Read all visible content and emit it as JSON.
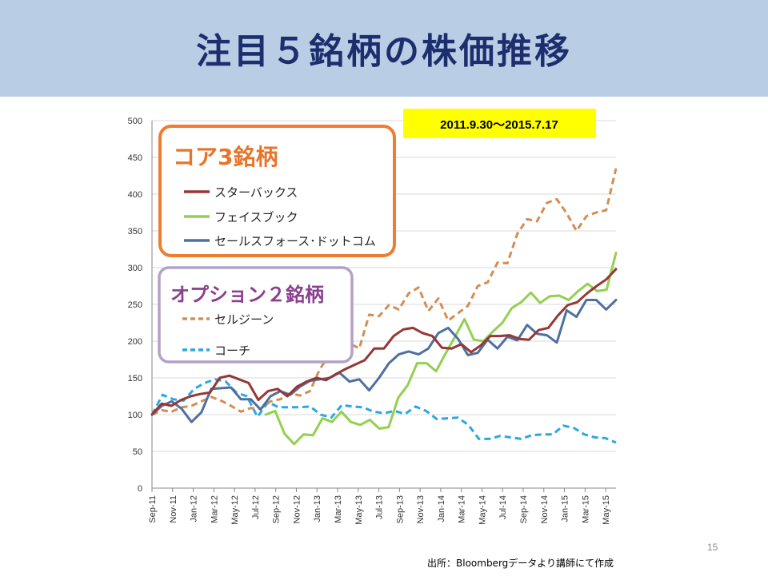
{
  "slide": {
    "title": "注目５銘柄の株価推移",
    "page_number": "15",
    "source": "出所：Bloombergデータより講師にて作成"
  },
  "date_range_label": "2011.9.30～2015.7.17",
  "legend_groups": [
    {
      "title": "コア3銘柄",
      "title_color": "#e8742a",
      "border_color": "#ee7d2f"
    },
    {
      "title": "オプション２銘柄",
      "title_color": "#8a3f8f",
      "border_color": "#b3a2c7"
    }
  ],
  "chart_data": {
    "type": "line",
    "ylim": [
      0,
      500
    ],
    "y_ticks": [
      "0",
      "50",
      "100",
      "150",
      "200",
      "250",
      "300",
      "350",
      "400",
      "450",
      "500"
    ],
    "x_tick_labels": [
      "Sep-11",
      "Nov-11",
      "Jan-12",
      "Mar-12",
      "May-12",
      "Jul-12",
      "Sep-12",
      "Nov-12",
      "Jan-13",
      "Mar-13",
      "May-13",
      "Jul-13",
      "Sep-13",
      "Nov-13",
      "Jan-14",
      "Mar-14",
      "May-14",
      "Jul-14",
      "Sep-14",
      "Nov-14",
      "Jan-15",
      "Mar-15",
      "May-15"
    ],
    "grid": "horizontal",
    "series": [
      {
        "name": "スターバックス",
        "group": 0,
        "color": "#953735",
        "style": "solid",
        "values": [
          100,
          115,
          112,
          120,
          125,
          128,
          130,
          150,
          153,
          148,
          143,
          120,
          132,
          135,
          125,
          138,
          145,
          150,
          147,
          155,
          162,
          168,
          174,
          190,
          190,
          207,
          216,
          218,
          211,
          207,
          191,
          190,
          196,
          185,
          194,
          207,
          207,
          208,
          203,
          202,
          215,
          218,
          235,
          249,
          253,
          265,
          275,
          284,
          298
        ]
      },
      {
        "name": "フェイスブック",
        "group": 0,
        "color": "#92d050",
        "style": "solid",
        "values": [
          null,
          null,
          null,
          null,
          null,
          null,
          null,
          null,
          null,
          null,
          null,
          null,
          100,
          105,
          74,
          60,
          73,
          72,
          95,
          90,
          104,
          90,
          86,
          93,
          81,
          83,
          123,
          140,
          170,
          170,
          159,
          183,
          206,
          230,
          202,
          200,
          213,
          225,
          245,
          253,
          266,
          252,
          261,
          262,
          256,
          268,
          278,
          268,
          270,
          320
        ]
      },
      {
        "name": "セールスフォース･ドットコム",
        "group": 0,
        "color": "#4f6fa0",
        "style": "solid",
        "values": [
          100,
          112,
          118,
          108,
          90,
          103,
          135,
          136,
          137,
          121,
          121,
          107,
          125,
          132,
          127,
          138,
          146,
          148,
          150,
          157,
          145,
          148,
          133,
          150,
          170,
          182,
          186,
          182,
          190,
          211,
          218,
          203,
          181,
          184,
          202,
          190,
          206,
          201,
          222,
          210,
          208,
          198,
          242,
          233,
          256,
          256,
          243,
          256
        ]
      },
      {
        "name": "セルジーン",
        "group": 1,
        "color": "#d28e55",
        "style": "dashed",
        "values": [
          100,
          106,
          104,
          110,
          112,
          118,
          124,
          119,
          112,
          104,
          109,
          108,
          118,
          121,
          129,
          126,
          132,
          162,
          182,
          188,
          197,
          190,
          236,
          234,
          249,
          243,
          265,
          273,
          241,
          258,
          228,
          238,
          248,
          275,
          280,
          307,
          306,
          346,
          366,
          363,
          388,
          393,
          374,
          350,
          370,
          375,
          378,
          435
        ]
      },
      {
        "name": "コーチ",
        "group": 1,
        "color": "#2ca7e0",
        "style": "dashed",
        "values": [
          100,
          127,
          121,
          119,
          135,
          143,
          148,
          145,
          130,
          125,
          97,
          117,
          110,
          110,
          110,
          111,
          100,
          96,
          113,
          111,
          110,
          104,
          102,
          105,
          101,
          111,
          105,
          94,
          95,
          96,
          86,
          67,
          67,
          71,
          69,
          67,
          72,
          73,
          73,
          85,
          82,
          73,
          69,
          68,
          62
        ]
      }
    ]
  }
}
